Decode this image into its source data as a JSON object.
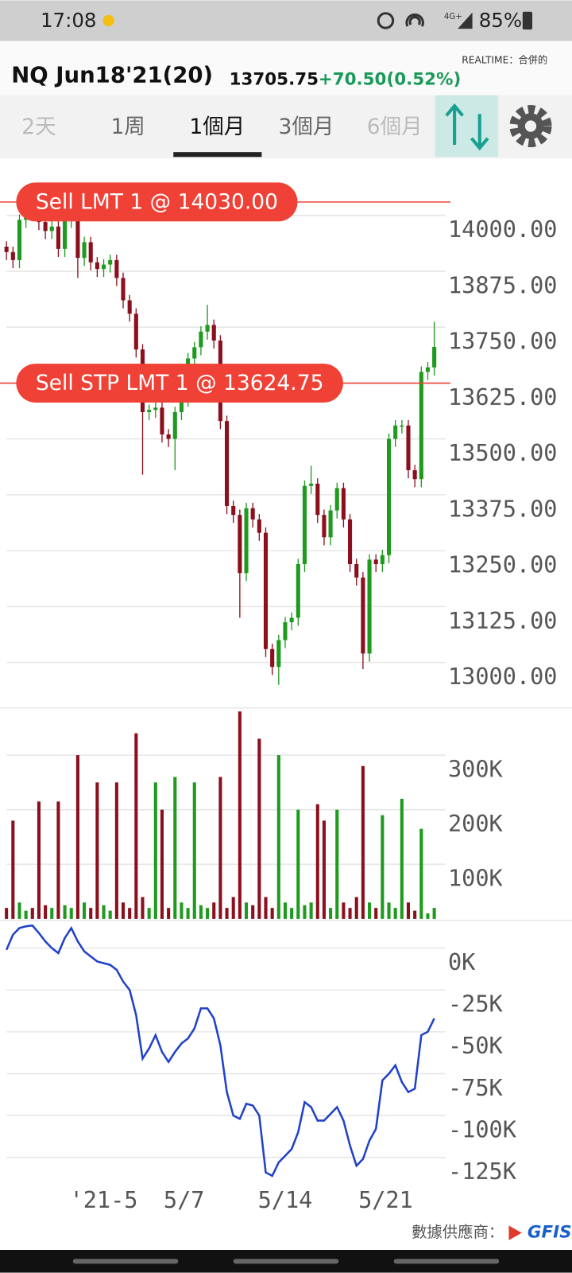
{
  "status_bar": {
    "time": "17:08",
    "network": "4G+",
    "battery": "85%"
  },
  "header": {
    "symbol": "NQ Jun18'21(20)",
    "price": "13705.75",
    "change": "+70.50",
    "change_pct": "(0.52%)",
    "source": "REALTIME：合併的"
  },
  "tabs": {
    "items": [
      "2天",
      "1周",
      "1個月",
      "3個月",
      "6個月"
    ],
    "active": 2
  },
  "footer": {
    "provider": "數據供應商：",
    "logo": "GFIS"
  },
  "chart_data": [
    {
      "type": "candlestick",
      "up_color": "#1e9a1e",
      "down_color": "#8c0f1e",
      "x": [
        0,
        1,
        2,
        3,
        4,
        5,
        6,
        7,
        8,
        9,
        10,
        11,
        12,
        13,
        14,
        15,
        16,
        17,
        18,
        19,
        20,
        21,
        22,
        23,
        24,
        25,
        26,
        27,
        28,
        29,
        30,
        31,
        32,
        33,
        34,
        35,
        36,
        37,
        38,
        39,
        40,
        41,
        42,
        43,
        44,
        45,
        46,
        47,
        48,
        49,
        50,
        51,
        52,
        53,
        54,
        55,
        56,
        57,
        58,
        59,
        60,
        61,
        62,
        63,
        64,
        65,
        66
      ],
      "open": [
        13930,
        13918,
        13900,
        13990,
        14020,
        14010,
        13985,
        13965,
        13975,
        13925,
        13990,
        13995,
        13905,
        13940,
        13895,
        13880,
        13890,
        13900,
        13860,
        13810,
        13780,
        13700,
        13560,
        13565,
        13570,
        13510,
        13500,
        13560,
        13590,
        13680,
        13705,
        13740,
        13755,
        13720,
        13540,
        13350,
        13330,
        13200,
        13345,
        13320,
        13290,
        13030,
        12990,
        13050,
        13090,
        13100,
        13220,
        13395,
        13400,
        13330,
        13280,
        13340,
        13390,
        13320,
        13220,
        13190,
        13020,
        13230,
        13220,
        13240,
        13500,
        13530,
        13530,
        13430,
        13410,
        13650,
        13660
      ],
      "high": [
        13942,
        13930,
        14002,
        14032,
        14032,
        14022,
        13997,
        13987,
        13987,
        14002,
        14007,
        14007,
        13952,
        13952,
        13907,
        13902,
        13912,
        13912,
        13872,
        13822,
        13792,
        13712,
        13577,
        13582,
        13582,
        13522,
        13572,
        13602,
        13692,
        13717,
        13752,
        13800,
        13767,
        13732,
        13552,
        13362,
        13342,
        13357,
        13357,
        13332,
        13302,
        13042,
        13062,
        13102,
        13112,
        13232,
        13407,
        13440,
        13412,
        13342,
        13352,
        13402,
        13402,
        13332,
        13232,
        13202,
        13242,
        13242,
        13252,
        13512,
        13542,
        13542,
        13542,
        13442,
        13662,
        13672,
        13762
      ],
      "low": [
        13900,
        13882,
        13882,
        13972,
        13992,
        13967,
        13947,
        13947,
        13907,
        13907,
        13972,
        13860,
        13887,
        13877,
        13862,
        13862,
        13872,
        13842,
        13792,
        13762,
        13682,
        13420,
        13542,
        13547,
        13492,
        13482,
        13430,
        13542,
        13572,
        13662,
        13687,
        13722,
        13702,
        13522,
        13332,
        13312,
        13100,
        13182,
        13302,
        13272,
        13012,
        12972,
        12950,
        13032,
        13072,
        13082,
        13202,
        13377,
        13312,
        13262,
        13262,
        13322,
        13302,
        13202,
        13172,
        12985,
        13002,
        13202,
        13202,
        13222,
        13482,
        13512,
        13412,
        13392,
        13392,
        13632,
        13642
      ],
      "close": [
        13918,
        13900,
        13990,
        14020,
        14010,
        13985,
        13965,
        13975,
        13925,
        13990,
        13995,
        13905,
        13940,
        13895,
        13880,
        13890,
        13900,
        13860,
        13810,
        13780,
        13700,
        13560,
        13565,
        13570,
        13510,
        13500,
        13560,
        13590,
        13680,
        13705,
        13740,
        13755,
        13720,
        13540,
        13350,
        13330,
        13200,
        13345,
        13320,
        13290,
        13030,
        12990,
        13050,
        13090,
        13100,
        13220,
        13395,
        13400,
        13330,
        13280,
        13340,
        13390,
        13320,
        13220,
        13190,
        13020,
        13230,
        13220,
        13240,
        13500,
        13530,
        13530,
        13430,
        13410,
        13650,
        13660,
        13705.75
      ],
      "xlim": [
        -1,
        68.5
      ],
      "xticks": [
        {
          "value": 15,
          "label": "'21-5"
        },
        {
          "value": 27.4,
          "label": "5/7"
        },
        {
          "value": 43,
          "label": "5/14"
        },
        {
          "value": 58.5,
          "label": "5/21"
        }
      ],
      "ylim": [
        12902,
        14127
      ],
      "yticks": [
        {
          "value": 13000,
          "label": "13000.00"
        },
        {
          "value": 13125,
          "label": "13125.00"
        },
        {
          "value": 13250,
          "label": "13250.00"
        },
        {
          "value": 13375,
          "label": "13375.00"
        },
        {
          "value": 13500,
          "label": "13500.00"
        },
        {
          "value": 13625,
          "label": "13625.00"
        },
        {
          "value": 13750,
          "label": "13750.00"
        },
        {
          "value": 13875,
          "label": "13875.00"
        },
        {
          "value": 14000,
          "label": "14000.00"
        }
      ],
      "grid": true,
      "order_lines": [
        {
          "label": "Sell LMT 1 @ 14030.00",
          "value": 14030,
          "color": "#ef4136"
        },
        {
          "label": "Sell STP LMT 1 @ 13624.75",
          "value": 13624.75,
          "color": "#ef4136"
        }
      ]
    },
    {
      "type": "bar",
      "values": [
        20000,
        180000,
        30000,
        15000,
        20000,
        215000,
        25000,
        20000,
        215000,
        25000,
        20000,
        300000,
        30000,
        20000,
        250000,
        25000,
        15000,
        250000,
        30000,
        20000,
        340000,
        40000,
        20000,
        250000,
        200000,
        20000,
        260000,
        30000,
        20000,
        250000,
        25000,
        20000,
        30000,
        260000,
        20000,
        40000,
        380000,
        30000,
        25000,
        330000,
        40000,
        20000,
        300000,
        30000,
        20000,
        200000,
        25000,
        30000,
        210000,
        180000,
        20000,
        200000,
        30000,
        20000,
        40000,
        280000,
        30000,
        20000,
        190000,
        30000,
        20000,
        220000,
        30000,
        15000,
        165000,
        10000,
        20000
      ],
      "ylim": [
        0,
        385000
      ],
      "yticks": [
        {
          "value": 100000,
          "label": "100K"
        },
        {
          "value": 200000,
          "label": "200K"
        },
        {
          "value": 300000,
          "label": "300K"
        }
      ],
      "grid": true
    },
    {
      "type": "line",
      "color": "#2142c8",
      "values": [
        -1000,
        8000,
        12000,
        13000,
        13500,
        9000,
        4000,
        0,
        -3000,
        6000,
        12000,
        4000,
        -2000,
        -5000,
        -8000,
        -9000,
        -10000,
        -13000,
        -20000,
        -25000,
        -40000,
        -66000,
        -60000,
        -52000,
        -62000,
        -68000,
        -62000,
        -57000,
        -54000,
        -48000,
        -36000,
        -36000,
        -42000,
        -58000,
        -86000,
        -100000,
        -102000,
        -93000,
        -94000,
        -100000,
        -134000,
        -136000,
        -128000,
        -124000,
        -120000,
        -110000,
        -92000,
        -95000,
        -103000,
        -103000,
        -99000,
        -95000,
        -103000,
        -118000,
        -130000,
        -126000,
        -115000,
        -108000,
        -79000,
        -75000,
        -70000,
        -80000,
        -86000,
        -84000,
        -52000,
        -50000,
        -42000
      ],
      "ylim": [
        -141500,
        16000
      ],
      "yticks": [
        {
          "value": -125000,
          "label": "-125K"
        },
        {
          "value": -100000,
          "label": "-100K"
        },
        {
          "value": -75000,
          "label": "-75K"
        },
        {
          "value": -50000,
          "label": "-50K"
        },
        {
          "value": -25000,
          "label": "-25K"
        },
        {
          "value": 0,
          "label": "0K"
        }
      ],
      "grid": true
    }
  ]
}
